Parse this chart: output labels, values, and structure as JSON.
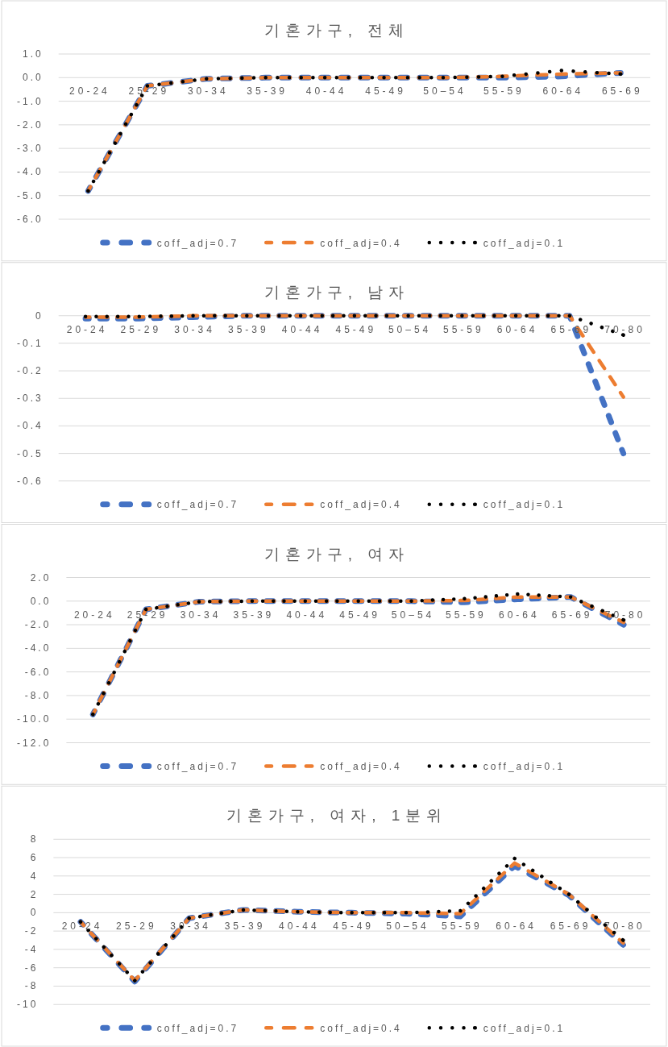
{
  "chart_data": [
    {
      "type": "line",
      "title": "기혼가구, 전체",
      "categories": [
        "20-24",
        "25-29",
        "30-34",
        "35-39",
        "40-44",
        "45-49",
        "50–54",
        "55-59",
        "60-64",
        "65-69"
      ],
      "series": [
        {
          "name": "coff_adj=0.7",
          "color": "#4472c4",
          "line_style": "dashed",
          "values": [
            -4.8,
            -0.35,
            -0.05,
            0,
            0,
            0,
            0,
            0,
            0.05,
            0.2
          ]
        },
        {
          "name": "coff_adj=0.4",
          "color": "#ed7d31",
          "line_style": "dashed",
          "values": [
            -4.8,
            -0.35,
            -0.05,
            0,
            0,
            0,
            0,
            0.05,
            0.15,
            0.2
          ]
        },
        {
          "name": "coff_adj=0.1",
          "color": "#000000",
          "line_style": "dotted",
          "values": [
            -4.8,
            -0.35,
            -0.05,
            0,
            0,
            0,
            0,
            0.05,
            0.3,
            0.15
          ]
        }
      ],
      "ylim": [
        -6,
        1
      ],
      "yticks": [
        {
          "value": 1,
          "label": "1.0"
        },
        {
          "value": 0,
          "label": "0.0"
        },
        {
          "value": -1,
          "label": "-1.0"
        },
        {
          "value": -2,
          "label": "-2.0"
        },
        {
          "value": -3,
          "label": "-3.0"
        },
        {
          "value": -4,
          "label": "-4.0"
        },
        {
          "value": -5,
          "label": "-5.0"
        },
        {
          "value": -6,
          "label": "-6.0"
        }
      ],
      "grid": "y",
      "legend": "bottom"
    },
    {
      "type": "line",
      "title": "기혼가구, 남자",
      "categories": [
        "20-24",
        "25-29",
        "30-34",
        "35-39",
        "40-44",
        "45-49",
        "50–54",
        "55-59",
        "60-64",
        "65-69",
        "70-80"
      ],
      "series": [
        {
          "name": "coff_adj=0.7",
          "color": "#4472c4",
          "line_style": "dashed",
          "values": [
            -0.01,
            -0.01,
            -0.005,
            0,
            0,
            0,
            0,
            0,
            0,
            0,
            -0.5
          ]
        },
        {
          "name": "coff_adj=0.4",
          "color": "#ed7d31",
          "line_style": "dashed",
          "values": [
            -0.005,
            -0.005,
            0,
            0,
            0,
            0,
            0,
            0,
            0,
            0,
            -0.295
          ]
        },
        {
          "name": "coff_adj=0.1",
          "color": "#000000",
          "line_style": "dotted",
          "values": [
            -0.003,
            -0.003,
            0,
            0,
            0,
            0,
            0,
            0,
            0,
            0,
            -0.07
          ]
        }
      ],
      "ylim": [
        -0.6,
        0
      ],
      "yticks": [
        0,
        -0.1,
        -0.2,
        -0.3,
        -0.4,
        -0.5,
        -0.6
      ],
      "grid": "y",
      "legend": "bottom"
    },
    {
      "type": "line",
      "title": "기혼가구, 여자",
      "categories": [
        "20-24",
        "25-29",
        "30-34",
        "35-39",
        "40-44",
        "45-49",
        "50–54",
        "55-59",
        "60-64",
        "65-69",
        "70-80"
      ],
      "series": [
        {
          "name": "coff_adj=0.7",
          "color": "#4472c4",
          "line_style": "dashed",
          "values": [
            -9.6,
            -0.7,
            -0.05,
            0,
            0,
            0,
            0,
            -0.1,
            0.15,
            0.35,
            -2.0
          ]
        },
        {
          "name": "coff_adj=0.4",
          "color": "#ed7d31",
          "line_style": "dashed",
          "values": [
            -9.6,
            -0.7,
            -0.05,
            0,
            0,
            0,
            0,
            0.05,
            0.35,
            0.35,
            -1.8
          ]
        },
        {
          "name": "coff_adj=0.1",
          "color": "#000000",
          "line_style": "dotted",
          "values": [
            -9.6,
            -0.7,
            -0.05,
            0,
            0,
            0,
            0,
            0.2,
            0.6,
            0.35,
            -1.6
          ]
        }
      ],
      "ylim": [
        -12,
        2
      ],
      "yticks": [
        {
          "value": 2,
          "label": "2.0"
        },
        {
          "value": 0,
          "label": "0.0"
        },
        {
          "value": -2,
          "label": "-2.0"
        },
        {
          "value": -4,
          "label": "-4.0"
        },
        {
          "value": -6,
          "label": "-6.0"
        },
        {
          "value": -8,
          "label": "-8.0"
        },
        {
          "value": -10,
          "label": "-10.0"
        },
        {
          "value": -12,
          "label": "-12.0"
        }
      ],
      "grid": "y",
      "legend": "bottom"
    },
    {
      "type": "line",
      "title": "기혼가구, 여자, 1분위",
      "categories": [
        "20-24",
        "25-29",
        "30-34",
        "35-39",
        "40-44",
        "45-49",
        "50–54",
        "55-59",
        "60-64",
        "65-69",
        "70-80"
      ],
      "series": [
        {
          "name": "coff_adj=0.7",
          "color": "#4472c4",
          "line_style": "dashed",
          "values": [
            -1.0,
            -7.5,
            -0.6,
            0.3,
            0.1,
            0,
            -0.1,
            -0.4,
            5.1,
            1.9,
            -3.5
          ]
        },
        {
          "name": "coff_adj=0.4",
          "color": "#ed7d31",
          "line_style": "dashed",
          "values": [
            -1.0,
            -7.4,
            -0.6,
            0.3,
            0.1,
            0,
            0,
            -0.1,
            5.4,
            2.0,
            -3.3
          ]
        },
        {
          "name": "coff_adj=0.1",
          "color": "#000000",
          "line_style": "dotted",
          "values": [
            -1.0,
            -7.4,
            -0.6,
            0.3,
            0.1,
            0,
            0,
            0.2,
            5.9,
            2.0,
            -3.0
          ]
        }
      ],
      "ylim": [
        -10,
        8
      ],
      "yticks": [
        8,
        6,
        4,
        2,
        0,
        -2,
        -4,
        -6,
        -8,
        -10
      ],
      "grid": "y",
      "legend": "bottom"
    }
  ]
}
